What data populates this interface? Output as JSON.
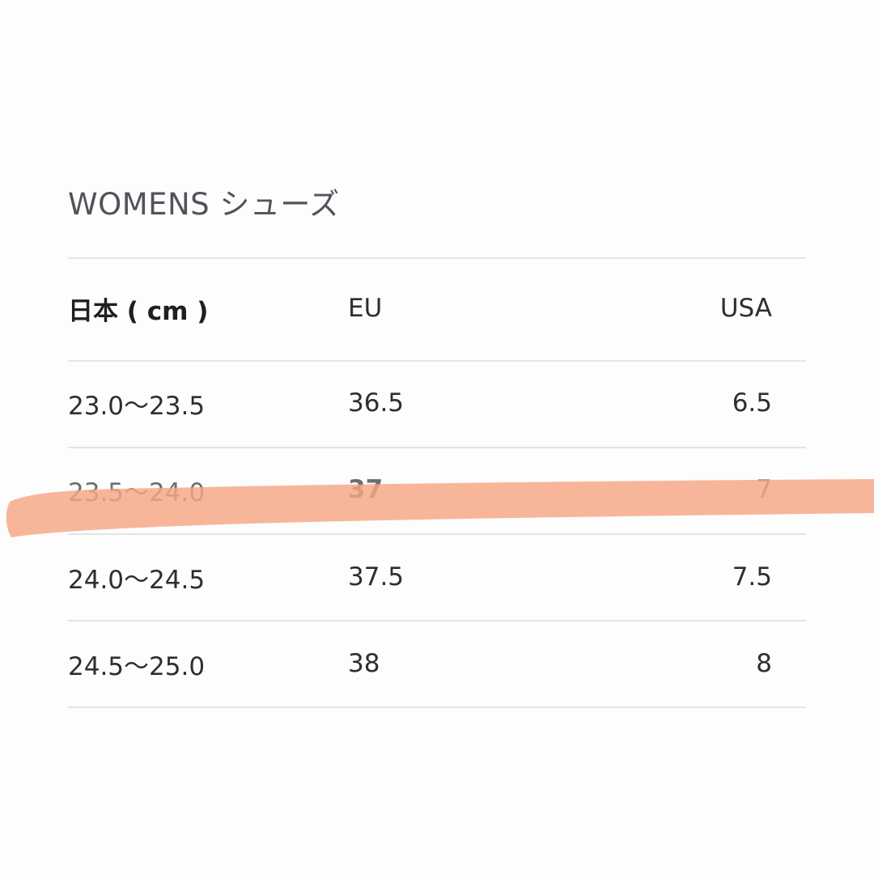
{
  "title": "WOMENS シューズ",
  "table": {
    "headers": [
      "日本 ( cm )",
      "EU",
      "USA"
    ],
    "rows": [
      [
        "23.0〜23.5",
        "36.5",
        "6.5"
      ],
      [
        "23.5〜24.0",
        "37",
        "7"
      ],
      [
        "24.0〜24.5",
        "37.5",
        "7.5"
      ],
      [
        "24.5〜25.0",
        "38",
        "8"
      ]
    ],
    "highlighted_row_index": 1
  },
  "colors": {
    "highlight_marker": "#f5a684",
    "rule": "#e4e4e4",
    "title": "#50545a"
  }
}
